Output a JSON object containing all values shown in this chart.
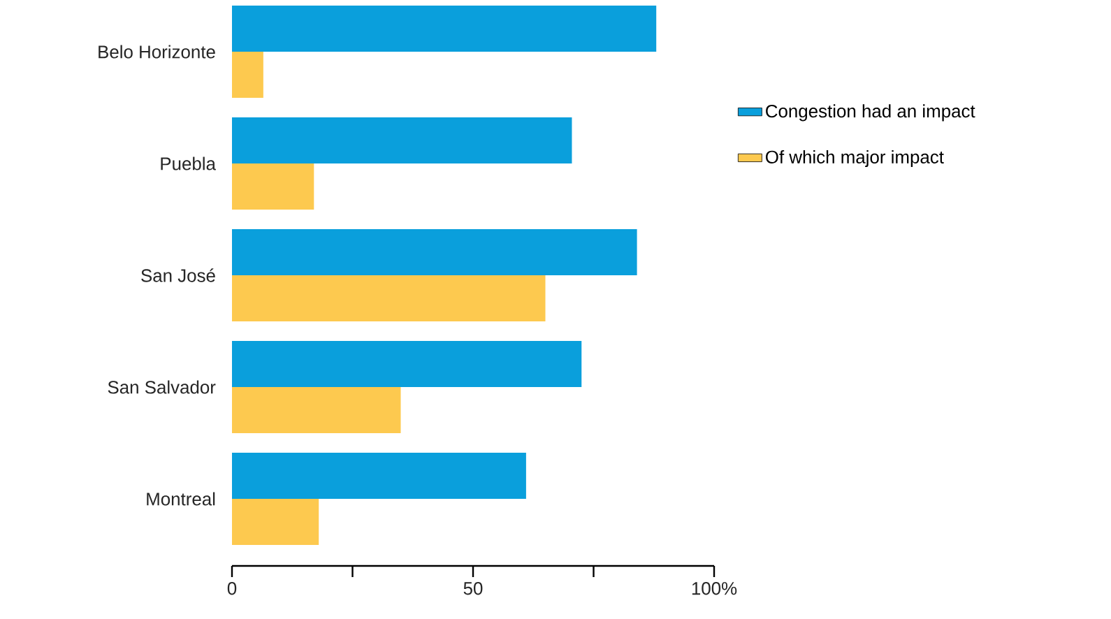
{
  "chart_data": {
    "type": "bar",
    "orientation": "horizontal",
    "categories": [
      "Belo Horizonte",
      "Puebla",
      "San José",
      "San Salvador",
      "Montreal"
    ],
    "series": [
      {
        "name": "Congestion had an impact",
        "color": "#0a9fdc",
        "values": [
          88,
          70.5,
          84,
          72.5,
          61
        ]
      },
      {
        "name": "Of which major impact",
        "color": "#fdc94f",
        "values": [
          6.5,
          17,
          65,
          35,
          18
        ]
      }
    ],
    "xlim": [
      0,
      100
    ],
    "xticks": [
      0,
      {
        "value": 25,
        "label": null
      },
      50,
      {
        "value": 75,
        "label": null
      },
      {
        "value": 100,
        "label": "100%"
      }
    ],
    "legend": "right",
    "grid": false
  }
}
